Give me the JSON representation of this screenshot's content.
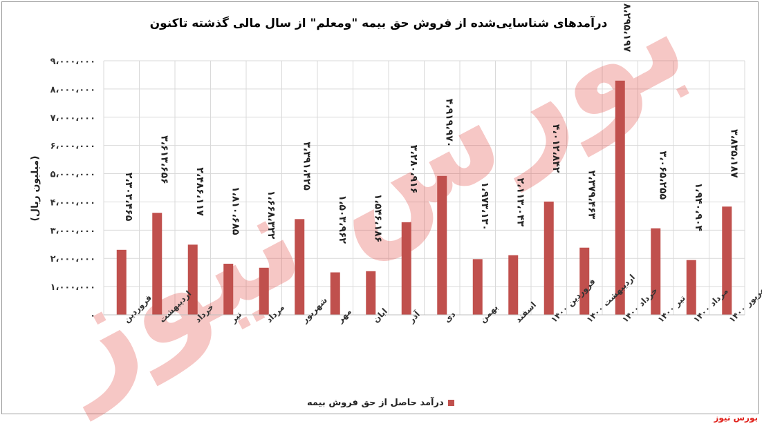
{
  "chart_data": {
    "type": "bar",
    "title": "درآمدهای شناسایی‌شده از فروش حق بیمه \"ومعلم\" از سال مالی گذشته تاکنون",
    "ylabel": "(میلیون ریال)",
    "xlabel": "",
    "ylim": [
      0,
      9000000
    ],
    "yticks": [
      "۰",
      "۱،۰۰۰،۰۰۰",
      "۲،۰۰۰،۰۰۰",
      "۳،۰۰۰،۰۰۰",
      "۴،۰۰۰،۰۰۰",
      "۵،۰۰۰،۰۰۰",
      "۶،۰۰۰،۰۰۰",
      "۷،۰۰۰،۰۰۰",
      "۸،۰۰۰،۰۰۰",
      "۹،۰۰۰،۰۰۰"
    ],
    "grid": true,
    "legend_position": "bottom",
    "categories": [
      "فروردین",
      "اردیبهشت",
      "خرداد",
      "تیر",
      "مرداد",
      "شهریور",
      "مهر",
      "ابان",
      "آذر",
      "دی",
      "بهمن",
      "اسفند",
      "فروردین ۱۴۰۰",
      "اردیبهشت ۱۴۰۰",
      "خرداد ۱۴۰۰",
      "تیر ۱۴۰۰",
      "مرداد ۱۴۰۰",
      "شهریور ۱۴۰۰"
    ],
    "series": [
      {
        "name": "درآمد حاصل از حق فروش بیمه",
        "color": "#c0504d",
        "values": [
          2303465,
          3613656,
          2486117,
          1810685,
          1668322,
          3391425,
          1503962,
          1546186,
          3280916,
          4919970,
          1973130,
          2113043,
          4012842,
          2379463,
          8295197,
          3065255,
          1940904,
          3835187
        ],
        "labels": [
          "۲،۳۰۳،۴۶۵",
          "۳،۶۱۳،۶۵۶",
          "۲،۴۸۶،۱۱۷",
          "۱،۸۱۰،۶۸۵",
          "۱،۶۶۸،۳۲۲",
          "۳،۳۹۱،۴۲۵",
          "۱،۵۰۳،۹۶۲",
          "۱،۵۴۶،۱۸۶",
          "۳،۲۸۰،۹۱۶",
          "۴،۹۱۹،۹۷۰",
          "۱،۹۷۳،۱۳۰",
          "۲،۱۱۳،۰۴۳",
          "۴،۰۱۲،۸۴۲",
          "۲،۳۷۹،۴۶۳",
          "۸،۲۹۵،۱۹۷",
          "۳،۰۶۵،۲۵۵",
          "۱،۹۴۰،۹۰۴",
          "۳،۸۳۵،۱۸۷"
        ]
      }
    ]
  },
  "watermark": {
    "text": "بورس نیوز",
    "color": "#e23a34"
  },
  "source": "بورس نیوز"
}
